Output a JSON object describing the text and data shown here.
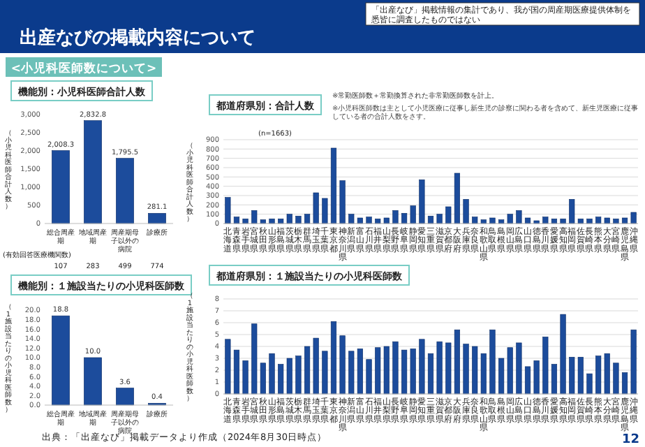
{
  "chart_data": [
    {
      "type": "bar",
      "title": "機能別：小児科医師合計人数",
      "ylabel": "（小児科医師合計人数）",
      "color": "#1c4c9c",
      "categories": [
        "総合周産期",
        "地域周産期",
        "周産期母子以外の病院",
        "診療所"
      ],
      "values": [
        2008.3,
        2832.8,
        1795.5,
        281.1
      ],
      "value_labels": [
        "2,008.3",
        "2,832.8",
        "1,795.5",
        "281.1"
      ],
      "ylim": [
        0,
        3000
      ],
      "yticks": [
        0,
        500,
        {
          "value": 1000,
          "label": "1,000"
        },
        {
          "value": 1500,
          "label": "1,500"
        },
        {
          "value": 2000,
          "label": "2,000"
        },
        {
          "value": 2500,
          "label": "2,500"
        },
        {
          "value": 3000,
          "label": "3,000"
        }
      ],
      "grid": false,
      "annotations": [
        "出産なびの掲載内容について",
        "「出産なび」掲載情報の集計であり、我が国の周産期医療提供体制を悉皆に調査したものではない",
        "<小児科医師数について>",
        "(有効回答医療機関数)",
        "107",
        "283",
        "499",
        "774"
      ]
    },
    {
      "type": "bar",
      "title": "機能別：１施設当たりの小児科医師数",
      "ylabel": "（1施設当たりの小児科医師数）",
      "color": "#1c4c9c",
      "categories": [
        "総合周産期",
        "地域周産期",
        "周産期母子以外の病院",
        "診療所"
      ],
      "values": [
        18.8,
        10.0,
        3.6,
        0.4
      ],
      "value_labels": [
        "18.8",
        "10.0",
        "3.6",
        "0.4"
      ],
      "ylim": [
        0,
        20
      ],
      "yticks": [
        {
          "value": 0,
          "label": "0.0"
        },
        {
          "value": 2,
          "label": "2.0"
        },
        {
          "value": 4,
          "label": "4.0"
        },
        {
          "value": 6,
          "label": "6.0"
        },
        {
          "value": 8,
          "label": "8.0"
        },
        {
          "value": 10,
          "label": "10.0"
        },
        {
          "value": 12,
          "label": "12.0"
        },
        {
          "value": 14,
          "label": "14.0"
        },
        {
          "value": 16,
          "label": "16.0"
        },
        {
          "value": 18,
          "label": "18.0"
        },
        {
          "value": 20,
          "label": "20.0"
        }
      ],
      "grid": false,
      "annotations": [
        "出典：「出産なび」掲載データより作成（2024年8月30日時点）"
      ]
    },
    {
      "type": "bar",
      "title": "都道府県別：合計人数",
      "subtitle": "(n=1663)",
      "ylabel": "（小児科医師合計人数）",
      "color": "#1c4c9c",
      "categories": [
        "北海道",
        "青森県",
        "岩手県",
        "宮城県",
        "秋田県",
        "山形県",
        "福島県",
        "茨城県",
        "栃木県",
        "群馬県",
        "埼玉県",
        "千葉県",
        "東京都",
        "神奈川県",
        "新潟県",
        "富山県",
        "石川県",
        "福井県",
        "山梨県",
        "長野県",
        "岐阜県",
        "静岡県",
        "愛知県",
        "三重県",
        "滋賀県",
        "京都府",
        "大阪府",
        "兵庫県",
        "奈良県",
        "和歌山県",
        "鳥取県",
        "島根県",
        "岡山県",
        "広島県",
        "山口県",
        "徳島県",
        "香川県",
        "愛媛県",
        "高知県",
        "福岡県",
        "佐賀県",
        "長崎県",
        "熊本県",
        "大分県",
        "宮崎県",
        "鹿児島県",
        "沖縄県"
      ],
      "values": [
        280,
        70,
        50,
        140,
        40,
        50,
        50,
        100,
        80,
        100,
        330,
        270,
        810,
        460,
        100,
        60,
        70,
        50,
        60,
        140,
        110,
        190,
        470,
        80,
        100,
        180,
        540,
        260,
        70,
        40,
        60,
        40,
        100,
        140,
        60,
        30,
        70,
        50,
        50,
        260,
        50,
        50,
        70,
        60,
        50,
        60,
        120
      ],
      "ylim": [
        0,
        900
      ],
      "yticks": [
        0,
        100,
        200,
        300,
        400,
        500,
        600,
        700,
        800,
        900
      ],
      "grid": "y",
      "annotations": [
        "※常勤医師数＋常勤換算された非常勤医師数を計上。",
        "※小児科医師数は主として小児医療に従事し新生児の診察に関わる者を含めて、新生児医療に従事している者の合計人数をさす。"
      ]
    },
    {
      "type": "bar",
      "title": "都道府県別：１施設当たりの小児科医師数",
      "ylabel": "（1施設当たりの小児科医師数）",
      "color": "#1c4c9c",
      "categories": [
        "北海道",
        "青森県",
        "岩手県",
        "宮城県",
        "秋田県",
        "山形県",
        "福島県",
        "茨城県",
        "栃木県",
        "群馬県",
        "埼玉県",
        "千葉県",
        "東京都",
        "神奈川県",
        "新潟県",
        "富山県",
        "石川県",
        "福井県",
        "山梨県",
        "長野県",
        "岐阜県",
        "静岡県",
        "愛知県",
        "三重県",
        "滋賀県",
        "京都府",
        "大阪府",
        "兵庫県",
        "奈良県",
        "和歌山県",
        "鳥取県",
        "島根県",
        "岡山県",
        "広島県",
        "山口県",
        "徳島県",
        "香川県",
        "愛媛県",
        "高知県",
        "福岡県",
        "佐賀県",
        "長崎県",
        "熊本県",
        "大分県",
        "宮崎県",
        "鹿児島県",
        "沖縄県"
      ],
      "values": [
        4.6,
        3.7,
        2.8,
        5.9,
        2.6,
        3.4,
        2.5,
        3.0,
        3.2,
        4.0,
        4.7,
        3.6,
        6.1,
        4.9,
        3.6,
        3.8,
        2.9,
        3.9,
        4.0,
        4.4,
        3.7,
        3.8,
        4.6,
        3.4,
        4.4,
        4.3,
        5.4,
        4.2,
        4.0,
        3.4,
        5.4,
        3.0,
        3.9,
        4.3,
        2.3,
        2.8,
        4.8,
        2.5,
        6.7,
        3.1,
        3.1,
        1.7,
        3.2,
        3.4,
        2.6,
        1.8,
        5.4
      ],
      "ylim": [
        0,
        8
      ],
      "yticks": [
        0,
        1,
        2,
        3,
        4,
        5,
        6,
        7,
        8
      ],
      "grid": "y",
      "annotations": [
        "12"
      ]
    }
  ]
}
